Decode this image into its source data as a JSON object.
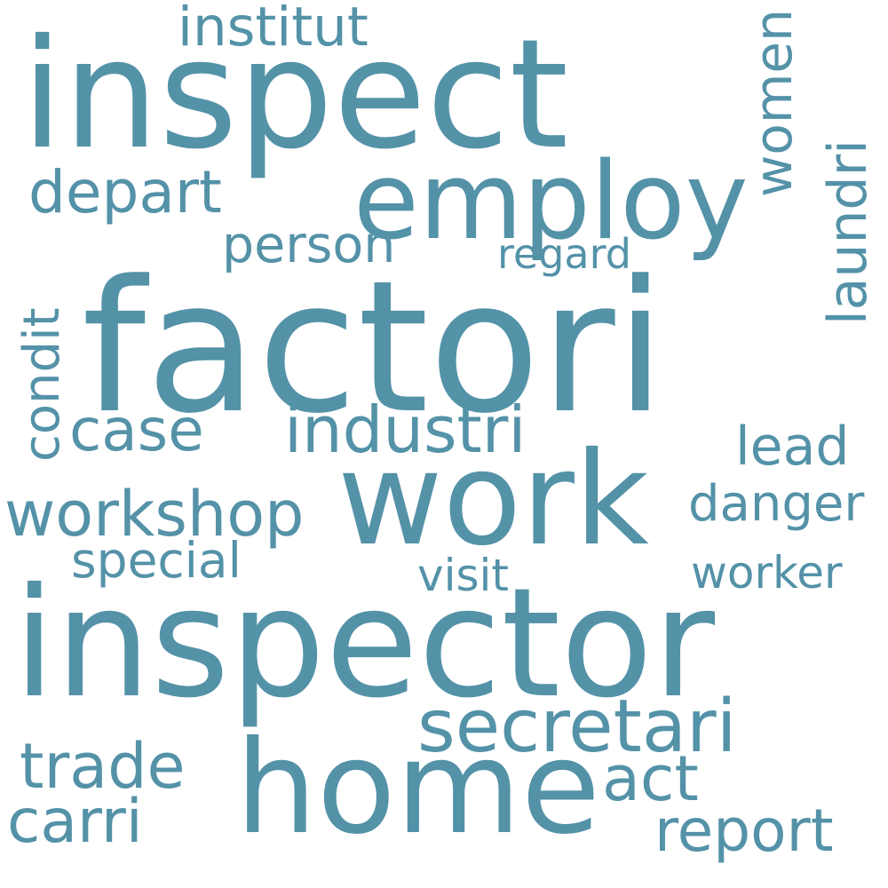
{
  "words": {
    "factori": "factori",
    "inspector": "inspector",
    "inspect": "inspect",
    "home": "home",
    "work": "work",
    "employ": "employ",
    "secretari": "secretari",
    "workshop": "workshop",
    "industri": "industri",
    "trade": "trade",
    "carri": "carri",
    "report": "report",
    "act": "act",
    "depart": "depart",
    "case": "case",
    "person": "person",
    "institut": "institut",
    "lead": "lead",
    "danger": "danger",
    "special": "special",
    "worker": "worker",
    "visit": "visit",
    "regard": "regard",
    "women": "women",
    "laundri": "laundri",
    "condit": "condit"
  },
  "colors": {
    "word": "#5492a8",
    "background": "#ffffff"
  }
}
